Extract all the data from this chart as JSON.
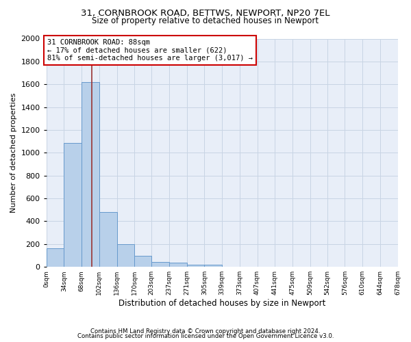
{
  "title_line1": "31, CORNBROOK ROAD, BETTWS, NEWPORT, NP20 7EL",
  "title_line2": "Size of property relative to detached houses in Newport",
  "xlabel": "Distribution of detached houses by size in Newport",
  "ylabel": "Number of detached properties",
  "bar_values": [
    165,
    1085,
    1620,
    480,
    200,
    100,
    45,
    35,
    22,
    20,
    0,
    0,
    0,
    0,
    0,
    0,
    0,
    0,
    0,
    0
  ],
  "bin_edges": [
    0,
    34,
    68,
    102,
    136,
    170,
    203,
    237,
    271,
    305,
    339,
    373,
    407,
    441,
    475,
    509,
    542,
    576,
    610,
    644,
    678
  ],
  "bar_color": "#b8d0ea",
  "bar_edge_color": "#6699cc",
  "grid_color": "#c8d4e4",
  "vline_x": 88,
  "vline_color": "#993333",
  "annotation_text": "31 CORNBROOK ROAD: 88sqm\n← 17% of detached houses are smaller (622)\n81% of semi-detached houses are larger (3,017) →",
  "annotation_box_color": "#ffffff",
  "annotation_box_edge": "#cc0000",
  "ylim": [
    0,
    2000
  ],
  "yticks": [
    0,
    200,
    400,
    600,
    800,
    1000,
    1200,
    1400,
    1600,
    1800,
    2000
  ],
  "footer_line1": "Contains HM Land Registry data © Crown copyright and database right 2024.",
  "footer_line2": "Contains public sector information licensed under the Open Government Licence v3.0.",
  "bg_color": "#ffffff",
  "plot_bg_color": "#e8eef8"
}
